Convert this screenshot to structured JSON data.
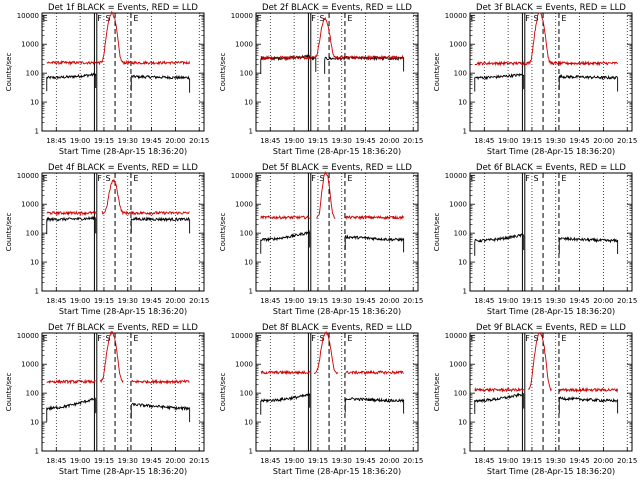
{
  "figure": {
    "type": "line",
    "y_axis_label": "Counts/sec",
    "x_axis_label": "Start Time (28-Apr-15 18:36:20)",
    "x_tick_labels": [
      "18:45",
      "19:00",
      "19:15",
      "19:30",
      "19:45",
      "20:00",
      "20:15"
    ],
    "y_tick_labels": [
      "1",
      "10",
      "100",
      "1000",
      "10000"
    ],
    "y_scale": "log",
    "ylim": [
      1,
      12000
    ],
    "xlim_minutes_after_1836": [
      0,
      102
    ],
    "colors": {
      "events": "#000000",
      "lld": "#cc0000"
    },
    "marker_labels": [
      "E",
      "F",
      "S",
      "E"
    ],
    "marker_times_minutes": [
      33,
      34.5,
      46,
      56
    ]
  },
  "chart_data": [
    {
      "title": "Det 1f BLACK = Events, RED = LLD",
      "type": "line",
      "events": {
        "level": 70,
        "gap": [
          34,
          56
        ],
        "bump": 1.3
      },
      "lld": {
        "level": 230,
        "peak": 12000,
        "peak_center": 44,
        "peak_width": 2.5,
        "gap": null
      },
      "panel": "p1"
    },
    {
      "title": "Det 2f BLACK = Events, RED = LLD",
      "type": "line",
      "events": {
        "level": 320,
        "gap": [
          38,
          43
        ],
        "bump": 1.2
      },
      "lld": {
        "level": 350,
        "peak": 7000,
        "peak_center": 43.5,
        "peak_width": 2.5,
        "gap": null
      },
      "panel": "p2"
    },
    {
      "title": "Det 3f BLACK = Events, RED = LLD",
      "type": "line",
      "events": {
        "level": 70,
        "gap": [
          34,
          56
        ],
        "bump": 1.3
      },
      "lld": {
        "level": 220,
        "peak": 12000,
        "peak_center": 44,
        "peak_width": 2.5,
        "gap": null
      },
      "panel": "p3"
    },
    {
      "title": "Det 4f BLACK = Events, RED = LLD",
      "type": "line",
      "events": {
        "level": 300,
        "gap": [
          34,
          56
        ],
        "bump": 1.1
      },
      "lld": {
        "level": 500,
        "peak": 6000,
        "peak_center": 45,
        "peak_width": 2.5,
        "gap": [
          34,
          38
        ]
      },
      "panel": "p4"
    },
    {
      "title": "Det 5f BLACK = Events, RED = LLD",
      "type": "line",
      "events": {
        "level": 60,
        "gap": [
          34,
          56
        ],
        "bump": 1.8
      },
      "lld": {
        "level": 350,
        "peak": 12000,
        "peak_center": 44,
        "peak_width": 2,
        "gap": [
          34,
          56
        ]
      },
      "panel": "p5"
    },
    {
      "title": "Det 6f BLACK = Events, RED = LLD",
      "type": "line",
      "events": {
        "level": 55,
        "gap": [
          34,
          56
        ],
        "bump": 1.6
      },
      "lld": null,
      "panel": "p6"
    },
    {
      "title": "Det 7f BLACK = Events, RED = LLD",
      "type": "line",
      "events": {
        "level": 30,
        "gap": [
          34,
          56
        ],
        "bump": 2.2
      },
      "lld": {
        "level": 250,
        "peak": 12000,
        "peak_center": 44,
        "peak_width": 2.5,
        "gap": [
          34,
          56
        ]
      },
      "panel": "p7"
    },
    {
      "title": "Det 8f BLACK = Events, RED = LLD",
      "type": "line",
      "events": {
        "level": 55,
        "gap": [
          34,
          56
        ],
        "bump": 1.6
      },
      "lld": {
        "level": 520,
        "peak": 12000,
        "peak_center": 44,
        "peak_width": 2.5,
        "gap": [
          34,
          56
        ]
      },
      "panel": "p8"
    },
    {
      "title": "Det 9f BLACK = Events, RED = LLD",
      "type": "line",
      "events": {
        "level": 55,
        "gap": [
          34,
          56
        ],
        "bump": 1.7
      },
      "lld": {
        "level": 130,
        "peak": 12000,
        "peak_center": 44,
        "peak_width": 2.5,
        "gap": [
          34,
          56
        ]
      },
      "panel": "p9"
    }
  ]
}
